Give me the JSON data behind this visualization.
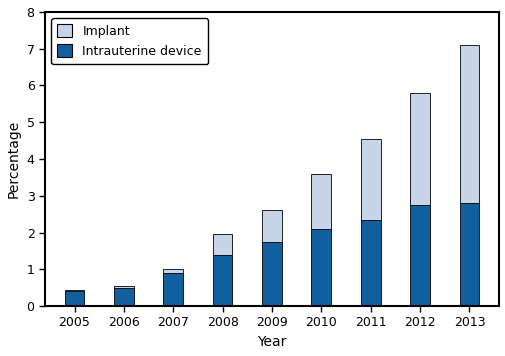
{
  "years": [
    2005,
    2006,
    2007,
    2008,
    2009,
    2010,
    2011,
    2012,
    2013
  ],
  "iud": [
    0.4,
    0.5,
    0.9,
    1.4,
    1.75,
    2.1,
    2.35,
    2.75,
    2.8
  ],
  "implant": [
    0.04,
    0.05,
    0.1,
    0.55,
    0.85,
    1.5,
    2.2,
    3.05,
    4.3
  ],
  "iud_color": "#1060a0",
  "implant_color": "#c8d4e8",
  "ylabel": "Percentage",
  "xlabel": "Year",
  "ylim": [
    0,
    8
  ],
  "yticks": [
    0,
    1,
    2,
    3,
    4,
    5,
    6,
    7,
    8
  ],
  "legend_labels": [
    "Implant",
    "Intrauterine device"
  ],
  "bar_width": 0.4
}
